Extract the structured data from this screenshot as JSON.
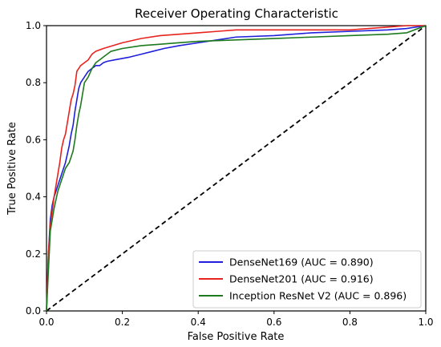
{
  "chart_data": {
    "type": "line",
    "title": "Receiver Operating Characteristic",
    "xlabel": "False Positive Rate",
    "ylabel": "True Positive Rate",
    "xlim": [
      0.0,
      1.0
    ],
    "ylim": [
      0.0,
      1.0
    ],
    "xticks": [
      "0.0",
      "0.2",
      "0.4",
      "0.6",
      "0.8",
      "1.0"
    ],
    "yticks": [
      "0.0",
      "0.2",
      "0.4",
      "0.6",
      "0.8",
      "1.0"
    ],
    "grid": false,
    "legend_position": "lower-right",
    "series": [
      {
        "name": "DenseNet169 (AUC = 0.890)",
        "color": "#1f1fdc",
        "x": [
          0.0,
          0.005,
          0.01,
          0.015,
          0.02,
          0.025,
          0.03,
          0.04,
          0.05,
          0.055,
          0.06,
          0.065,
          0.07,
          0.075,
          0.08,
          0.085,
          0.09,
          0.1,
          0.11,
          0.12,
          0.13,
          0.14,
          0.15,
          0.16,
          0.18,
          0.2,
          0.22,
          0.25,
          0.28,
          0.31,
          0.35,
          0.4,
          0.45,
          0.5,
          0.6,
          0.7,
          0.8,
          0.9,
          0.95,
          1.0
        ],
        "y": [
          0.0,
          0.2,
          0.32,
          0.37,
          0.4,
          0.42,
          0.44,
          0.48,
          0.52,
          0.55,
          0.58,
          0.62,
          0.65,
          0.7,
          0.74,
          0.78,
          0.8,
          0.82,
          0.84,
          0.85,
          0.86,
          0.86,
          0.87,
          0.875,
          0.88,
          0.885,
          0.89,
          0.9,
          0.91,
          0.92,
          0.93,
          0.94,
          0.95,
          0.96,
          0.965,
          0.975,
          0.98,
          0.985,
          0.99,
          1.0
        ]
      },
      {
        "name": "DenseNet201 (AUC = 0.916)",
        "color": "#e8231e",
        "x": [
          0.0,
          0.005,
          0.01,
          0.015,
          0.02,
          0.025,
          0.03,
          0.035,
          0.04,
          0.045,
          0.05,
          0.055,
          0.06,
          0.065,
          0.07,
          0.075,
          0.08,
          0.085,
          0.09,
          0.1,
          0.11,
          0.12,
          0.13,
          0.15,
          0.2,
          0.25,
          0.3,
          0.35,
          0.4,
          0.45,
          0.5,
          0.6,
          0.7,
          0.8,
          0.85,
          0.9,
          0.95,
          1.0
        ],
        "y": [
          0.0,
          0.2,
          0.3,
          0.35,
          0.4,
          0.44,
          0.48,
          0.52,
          0.57,
          0.6,
          0.62,
          0.66,
          0.7,
          0.74,
          0.76,
          0.79,
          0.84,
          0.85,
          0.86,
          0.87,
          0.88,
          0.9,
          0.91,
          0.92,
          0.94,
          0.955,
          0.965,
          0.97,
          0.975,
          0.98,
          0.985,
          0.985,
          0.985,
          0.985,
          0.99,
          0.995,
          1.0,
          1.0
        ]
      },
      {
        "name": "Inception ResNet V2 (AUC = 0.896)",
        "color": "#1e7a1e",
        "x": [
          0.0,
          0.01,
          0.02,
          0.03,
          0.04,
          0.05,
          0.06,
          0.07,
          0.075,
          0.08,
          0.085,
          0.09,
          0.095,
          0.1,
          0.11,
          0.12,
          0.13,
          0.14,
          0.15,
          0.17,
          0.2,
          0.25,
          0.3,
          0.35,
          0.4,
          0.5,
          0.6,
          0.7,
          0.8,
          0.9,
          0.95,
          1.0
        ],
        "y": [
          0.0,
          0.28,
          0.36,
          0.42,
          0.46,
          0.5,
          0.52,
          0.56,
          0.6,
          0.65,
          0.69,
          0.72,
          0.76,
          0.8,
          0.82,
          0.85,
          0.87,
          0.88,
          0.89,
          0.91,
          0.92,
          0.93,
          0.935,
          0.94,
          0.945,
          0.95,
          0.955,
          0.96,
          0.965,
          0.97,
          0.975,
          1.0
        ]
      }
    ],
    "reference_line": {
      "x": [
        0.0,
        1.0
      ],
      "y": [
        0.0,
        1.0
      ],
      "style": "dashed",
      "color": "#000000"
    }
  }
}
